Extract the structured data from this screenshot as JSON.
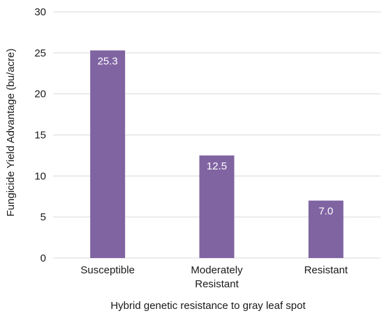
{
  "chart_data": {
    "type": "bar",
    "categories": [
      "Susceptible",
      "Moderately Resistant",
      "Resistant"
    ],
    "category_label_lines": [
      [
        "Susceptible"
      ],
      [
        "Moderately",
        "Resistant"
      ],
      [
        "Resistant"
      ]
    ],
    "values": [
      25.3,
      12.5,
      7.0
    ],
    "data_labels": [
      "25.3",
      "12.5",
      "7.0"
    ],
    "title": "",
    "xlabel": "Hybrid genetic resistance to gray leaf spot",
    "ylabel": "Fungicide Yield Advantage (bu/acre)",
    "ylim": [
      0,
      30
    ],
    "yticks": [
      0,
      5,
      10,
      15,
      20,
      25,
      30
    ],
    "grid": true,
    "legend": "none",
    "colors": {
      "bar": "#8064a2",
      "grid": "#d9d9d9",
      "text": "#1a1a1a",
      "data_label": "#ffffff"
    }
  }
}
